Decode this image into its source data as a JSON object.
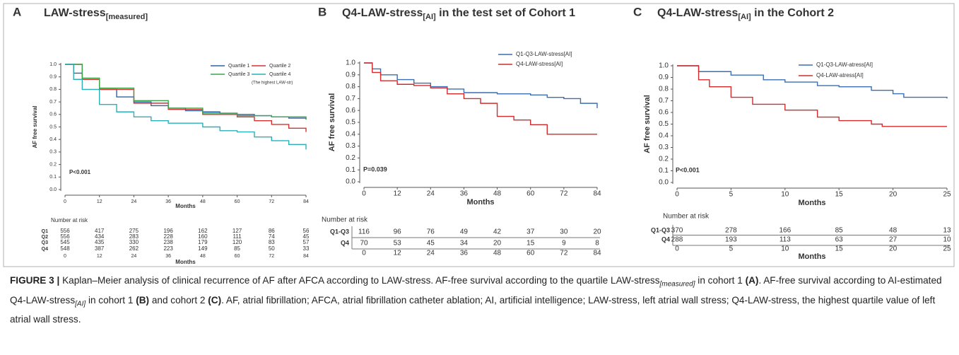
{
  "chart_data": [
    {
      "type": "line",
      "step": true,
      "panel": "A",
      "title": [
        {
          "text": "LAW-stress"
        },
        {
          "text": "[measured]",
          "sub": true
        }
      ],
      "xlabel": "Months",
      "ylabel": "AF free survival",
      "annotation": "P<0.001",
      "xlim": [
        0,
        84
      ],
      "ylim": [
        0,
        1
      ],
      "xticks": [
        0,
        12,
        24,
        36,
        48,
        60,
        72,
        84
      ],
      "yticks": [
        {
          "value": 0,
          "label": "0.0"
        },
        0.1,
        0.2,
        0.3,
        0.4,
        0.5,
        0.6,
        0.7,
        0.8,
        0.9,
        {
          "value": 1,
          "label": "1.0"
        }
      ],
      "series": [
        {
          "name": "Quartile 1",
          "color": "#2a64a8",
          "x": [
            0,
            3,
            6,
            12,
            18,
            24,
            30,
            36,
            42,
            48,
            54,
            60,
            66,
            72,
            78,
            84
          ],
          "values": [
            1,
            0.93,
            0.88,
            0.8,
            0.74,
            0.7,
            0.67,
            0.65,
            0.63,
            0.62,
            0.61,
            0.6,
            0.59,
            0.58,
            0.57,
            0.56
          ]
        },
        {
          "name": "Quartile 2",
          "color": "#d93030",
          "x": [
            0,
            6,
            12,
            24,
            36,
            48,
            60,
            66,
            72,
            78,
            84
          ],
          "values": [
            1,
            0.88,
            0.8,
            0.69,
            0.64,
            0.6,
            0.58,
            0.55,
            0.52,
            0.49,
            0.46
          ]
        },
        {
          "name": "Quartile 3",
          "color": "#3aa64a",
          "x": [
            0,
            6,
            12,
            24,
            36,
            48,
            60,
            72,
            84
          ],
          "values": [
            1,
            0.89,
            0.81,
            0.71,
            0.65,
            0.61,
            0.59,
            0.58,
            0.56
          ]
        },
        {
          "name": "Quartile 4",
          "color": "#2ab0b8",
          "x": [
            0,
            3,
            6,
            12,
            18,
            24,
            30,
            36,
            48,
            54,
            60,
            66,
            72,
            78,
            84
          ],
          "values": [
            1,
            0.88,
            0.8,
            0.68,
            0.62,
            0.58,
            0.55,
            0.53,
            0.5,
            0.47,
            0.46,
            0.42,
            0.39,
            0.36,
            0.32
          ]
        }
      ],
      "legend_note": "(The highest LAW-str)",
      "risk_table": {
        "title": "Number at risk",
        "months_label": true,
        "rows": [
          {
            "label": "Q1",
            "values": [
              556,
              417,
              275,
              196,
              162,
              127,
              86,
              56
            ]
          },
          {
            "label": "Q2",
            "values": [
              556,
              434,
              283,
              228,
              160,
              111,
              74,
              45
            ]
          },
          {
            "label": "Q3",
            "values": [
              545,
              435,
              330,
              238,
              179,
              120,
              83,
              57
            ]
          },
          {
            "label": "Q4",
            "values": [
              548,
              387,
              262,
              223,
              149,
              85,
              50,
              33
            ]
          }
        ]
      }
    },
    {
      "type": "line",
      "step": true,
      "panel": "B",
      "title": [
        {
          "text": "Q4-LAW-stress"
        },
        {
          "text": "[AI]",
          "sub": true
        },
        {
          "text": " in the test set of Cohort 1"
        }
      ],
      "xlabel": "Months",
      "ylabel": "AF free survival",
      "annotation": "P=0.039",
      "xlim": [
        0,
        84
      ],
      "ylim": [
        0,
        1
      ],
      "xticks": [
        0,
        12,
        24,
        36,
        48,
        60,
        72,
        84
      ],
      "yticks": [
        {
          "value": 0,
          "label": "0.0"
        },
        0.1,
        0.2,
        0.3,
        0.4,
        0.5,
        0.6,
        0.7,
        0.8,
        0.9,
        {
          "value": 1,
          "label": "1.0"
        }
      ],
      "series": [
        {
          "name": "Q1-Q3-LAW-stress[AI]",
          "color": "#3a6fb0",
          "x": [
            0,
            3,
            6,
            12,
            18,
            24,
            30,
            36,
            48,
            60,
            66,
            72,
            78,
            84
          ],
          "values": [
            1,
            0.95,
            0.9,
            0.86,
            0.83,
            0.8,
            0.78,
            0.75,
            0.74,
            0.73,
            0.71,
            0.7,
            0.66,
            0.62
          ]
        },
        {
          "name": "Q4-LAW-stress[AI]",
          "color": "#d42a2a",
          "x": [
            0,
            3,
            6,
            12,
            18,
            24,
            30,
            36,
            42,
            48,
            54,
            60,
            66,
            84
          ],
          "values": [
            1,
            0.92,
            0.85,
            0.82,
            0.81,
            0.79,
            0.74,
            0.7,
            0.66,
            0.55,
            0.52,
            0.48,
            0.4,
            0.4
          ]
        }
      ],
      "risk_table": {
        "title": "Number at risk",
        "months_label": false,
        "rows": [
          {
            "label": "Q1-Q3",
            "values": [
              116,
              96,
              76,
              49,
              42,
              37,
              30,
              20
            ]
          },
          {
            "label": "Q4",
            "values": [
              70,
              53,
              45,
              34,
              20,
              15,
              9,
              8
            ]
          }
        ]
      }
    },
    {
      "type": "line",
      "step": true,
      "panel": "C",
      "title": [
        {
          "text": "Q4-LAW-stress"
        },
        {
          "text": "[AI]",
          "sub": true
        },
        {
          "text": " in the Cohort 2"
        }
      ],
      "xlabel": "Months",
      "ylabel": "AF free survival",
      "annotation": "P<0.001",
      "xlim": [
        0,
        25
      ],
      "ylim": [
        0,
        1
      ],
      "xticks": [
        0,
        5,
        10,
        15,
        20,
        25
      ],
      "yticks": [
        {
          "value": 0,
          "label": "0.0"
        },
        0.1,
        0.2,
        0.3,
        0.4,
        0.5,
        0.6,
        0.7,
        0.8,
        0.9,
        {
          "value": 1,
          "label": "1.0"
        }
      ],
      "series": [
        {
          "name": "Q1-Q3-LAW-atress[AI]",
          "color": "#3a6fb0",
          "x": [
            0,
            2,
            5,
            8,
            10,
            13,
            15,
            18,
            20,
            21,
            25
          ],
          "values": [
            1,
            0.95,
            0.92,
            0.88,
            0.86,
            0.83,
            0.82,
            0.79,
            0.76,
            0.73,
            0.72
          ]
        },
        {
          "name": "Q4-LAW-atress[AI]",
          "color": "#d42a2a",
          "x": [
            0,
            2,
            3,
            5,
            7,
            10,
            13,
            15,
            18,
            19,
            25
          ],
          "values": [
            1,
            0.88,
            0.82,
            0.73,
            0.67,
            0.62,
            0.56,
            0.53,
            0.5,
            0.48,
            0.48
          ]
        }
      ],
      "risk_table": {
        "title": "Number at risk",
        "months_label": true,
        "rows": [
          {
            "label": "Q1-Q3",
            "values": [
              370,
              278,
              166,
              85,
              48,
              13
            ]
          },
          {
            "label": "Q4",
            "values": [
              288,
              193,
              113,
              63,
              27,
              10
            ]
          }
        ]
      }
    }
  ],
  "caption": [
    {
      "text": "FIGURE 3 | ",
      "bold": true
    },
    {
      "text": "Kaplan–Meier analysis of clinical recurrence of AF after AFCA according to LAW-stress. AF-free survival according to the quartile LAW-stress"
    },
    {
      "text": "[measured]",
      "sub": true,
      "italic": true
    },
    {
      "text": " in cohort 1 "
    },
    {
      "text": "(A)",
      "bold": true
    },
    {
      "text": ". AF-free survival according to AI-estimated Q4-LAW-stress"
    },
    {
      "text": "[AI]",
      "sub": true,
      "italic": true
    },
    {
      "text": " in cohort 1 "
    },
    {
      "text": "(B)",
      "bold": true
    },
    {
      "text": " and cohort 2 "
    },
    {
      "text": "(C)",
      "bold": true
    },
    {
      "text": ". AF, atrial fibrillation; AFCA, atrial fibrillation catheter ablation; AI, artificial intelligence; LAW-stress, left atrial wall stress; Q4-LAW-stress, the highest quartile value of left atrial wall stress."
    }
  ]
}
